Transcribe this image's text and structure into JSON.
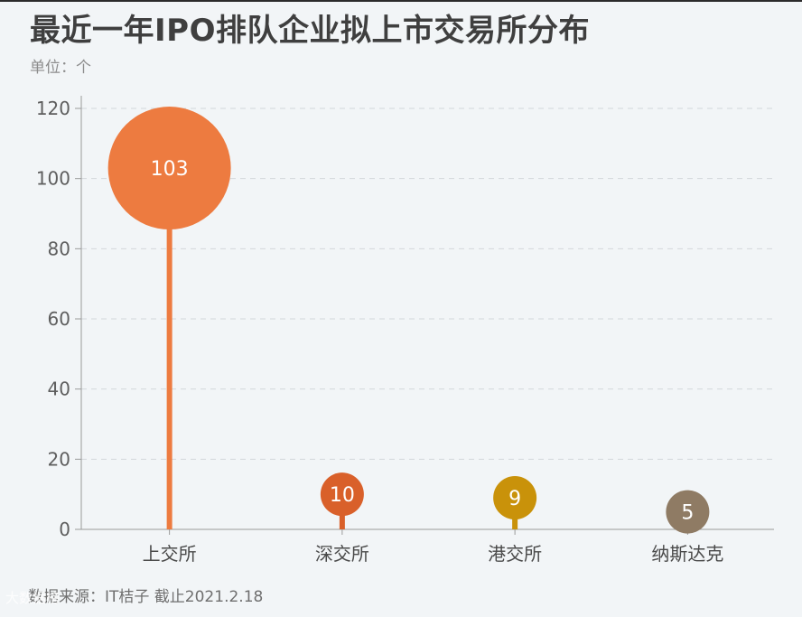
{
  "chart_data": {
    "type": "lollipop",
    "title": "最近一年IPO排队企业拟上市交易所分布",
    "unit_label": "单位：个",
    "categories": [
      "上交所",
      "深交所",
      "港交所",
      "纳斯达克"
    ],
    "values": [
      103,
      10,
      9,
      5
    ],
    "colors": [
      "#ed7b40",
      "#d9602a",
      "#c9920a",
      "#8f7b64"
    ],
    "y_ticks": [
      0,
      20,
      40,
      60,
      80,
      100,
      120
    ],
    "ylim": [
      0,
      120
    ],
    "grid": true,
    "legend": "none",
    "source": "数据来源：IT桔子 截止2021.2.18"
  },
  "watermark": "大数据榜"
}
